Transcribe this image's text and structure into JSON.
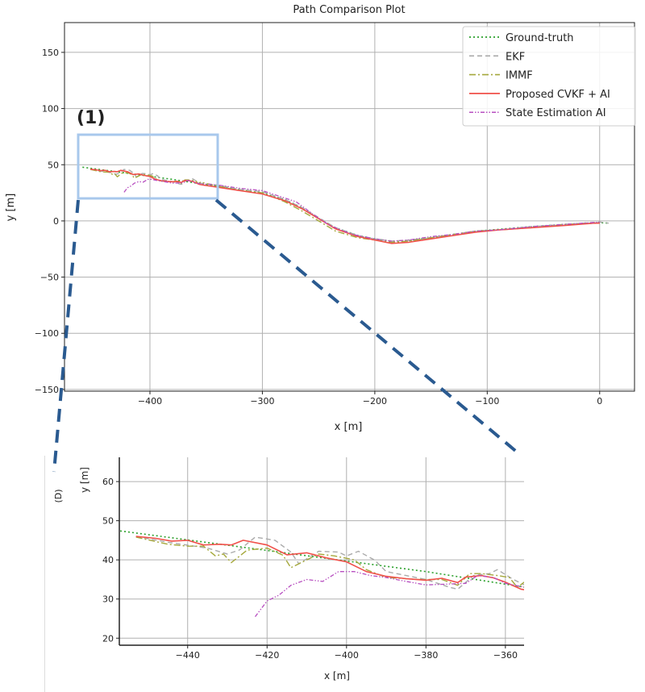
{
  "colors": {
    "ground_truth": "#2ca02c",
    "ekf": "#aaaaaa",
    "immf": "#a5a83c",
    "proposed": "#f0504a",
    "state_estimation_ai": "#b74fc0",
    "highlight_box": "#a8c8ec",
    "connector": "#2a5a90"
  },
  "annotations": {
    "region_label": "(1)",
    "inset_label": "(D)"
  },
  "chart_data": [
    {
      "type": "line",
      "title": "Path Comparison Plot",
      "xlabel": "x [m]",
      "ylabel": "y [m]",
      "xlim": [
        -476,
        31
      ],
      "ylim": [
        -151.5,
        176.5
      ],
      "xticks": [
        -400,
        -300,
        -200,
        -100,
        0
      ],
      "xtick_labels": [
        "−400",
        "−300",
        "−200",
        "−100",
        "0"
      ],
      "yticks": [
        -150,
        -100,
        -50,
        0,
        50,
        100,
        150
      ],
      "ytick_labels": [
        "−150",
        "−100",
        "−50",
        "0",
        "50",
        "100",
        "150"
      ],
      "grid": true,
      "legend_placement": "top-right",
      "highlight_region": {
        "xlim": [
          -465,
          -342
        ],
        "ylim": [
          19,
          76
        ]
      },
      "series": [
        {
          "name": "Ground-truth",
          "style": "dotted",
          "points": [
            [
              -460,
              47.8
            ],
            [
              -420,
              42.4
            ],
            [
              -380,
              37
            ],
            [
              -355,
              33
            ],
            [
              -340,
              31
            ],
            [
              -320,
              28
            ],
            [
              -300,
              25
            ],
            [
              -280,
              19
            ],
            [
              -265,
              12
            ],
            [
              -250,
              2
            ],
            [
              -235,
              -6
            ],
            [
              -215,
              -13
            ],
            [
              -200,
              -16
            ],
            [
              -185,
              -18
            ],
            [
              -170,
              -17.5
            ],
            [
              -150,
              -15
            ],
            [
              -130,
              -12
            ],
            [
              -110,
              -9
            ],
            [
              -90,
              -7.5
            ],
            [
              -60,
              -5
            ],
            [
              -30,
              -3
            ],
            [
              0,
              -1.5
            ],
            [
              8,
              -2
            ]
          ]
        },
        {
          "name": "EKF",
          "style": "dashed",
          "points": [
            [
              -453,
              46
            ],
            [
              -445,
              44.5
            ],
            [
              -435,
              43
            ],
            [
              -430,
              41.5
            ],
            [
              -427,
              42.5
            ],
            [
              -423,
              45.8
            ],
            [
              -418,
              45
            ],
            [
              -414,
              42
            ],
            [
              -412,
              39
            ],
            [
              -407,
              42.2
            ],
            [
              -402,
              42
            ],
            [
              -400,
              41
            ],
            [
              -397,
              42.2
            ],
            [
              -393,
              40
            ],
            [
              -390,
              37
            ],
            [
              -385,
              36
            ],
            [
              -380,
              35
            ],
            [
              -374,
              33
            ],
            [
              -372,
              32.5
            ],
            [
              -368,
              36
            ],
            [
              -364,
              36.5
            ],
            [
              -362,
              37.5
            ],
            [
              -358,
              35
            ],
            [
              -355,
              33.5
            ],
            [
              -340,
              32
            ],
            [
              -320,
              28
            ],
            [
              -300,
              26
            ],
            [
              -280,
              19
            ],
            [
              -265,
              12
            ],
            [
              -250,
              3
            ],
            [
              -235,
              -6
            ],
            [
              -215,
              -13
            ],
            [
              -200,
              -16
            ],
            [
              -185,
              -18
            ],
            [
              -170,
              -17
            ],
            [
              -150,
              -15
            ],
            [
              -130,
              -12
            ],
            [
              -110,
              -9
            ],
            [
              -90,
              -8
            ],
            [
              -60,
              -5
            ],
            [
              -30,
              -3
            ],
            [
              0,
              -1
            ],
            [
              8,
              -2
            ]
          ]
        },
        {
          "name": "IMMF",
          "style": "dashdot",
          "points": [
            [
              -453,
              45.8
            ],
            [
              -445,
              44
            ],
            [
              -440,
              43.5
            ],
            [
              -436,
              43.5
            ],
            [
              -433,
              41
            ],
            [
              -431,
              41.5
            ],
            [
              -429,
              39.3
            ],
            [
              -425,
              42.5
            ],
            [
              -420,
              43
            ],
            [
              -416,
              41.2
            ],
            [
              -414,
              38
            ],
            [
              -410,
              40
            ],
            [
              -407,
              41.5
            ],
            [
              -403,
              41
            ],
            [
              -398,
              40
            ],
            [
              -395,
              37.5
            ],
            [
              -390,
              35.5
            ],
            [
              -382,
              35
            ],
            [
              -376,
              35
            ],
            [
              -372,
              33.5
            ],
            [
              -369,
              36.5
            ],
            [
              -366,
              36.5
            ],
            [
              -362,
              36
            ],
            [
              -359,
              35.5
            ],
            [
              -357,
              33
            ],
            [
              -355,
              34.5
            ],
            [
              -340,
              31
            ],
            [
              -320,
              27
            ],
            [
              -300,
              25
            ],
            [
              -280,
              17
            ],
            [
              -265,
              9
            ],
            [
              -250,
              0
            ],
            [
              -235,
              -9
            ],
            [
              -215,
              -15
            ],
            [
              -200,
              -17
            ],
            [
              -185,
              -19
            ],
            [
              -170,
              -18
            ],
            [
              -150,
              -15
            ],
            [
              -130,
              -12
            ],
            [
              -110,
              -9
            ],
            [
              -90,
              -8
            ],
            [
              -60,
              -6
            ],
            [
              -30,
              -3
            ],
            [
              0,
              -2
            ]
          ]
        },
        {
          "name": "Proposed CVKF + AI",
          "style": "solid",
          "points": [
            [
              -453,
              46
            ],
            [
              -448,
              45.5
            ],
            [
              -444,
              44.8
            ],
            [
              -440,
              45
            ],
            [
              -436,
              43.8
            ],
            [
              -432,
              44
            ],
            [
              -429,
              43.8
            ],
            [
              -426,
              45
            ],
            [
              -420,
              43.8
            ],
            [
              -415,
              41.3
            ],
            [
              -410,
              41.8
            ],
            [
              -405,
              40.5
            ],
            [
              -400,
              39.5
            ],
            [
              -395,
              37
            ],
            [
              -390,
              35.8
            ],
            [
              -385,
              35.2
            ],
            [
              -380,
              34.8
            ],
            [
              -376,
              35.3
            ],
            [
              -372,
              34.2
            ],
            [
              -370,
              35.6
            ],
            [
              -366,
              36
            ],
            [
              -363,
              35.4
            ],
            [
              -360,
              34.3
            ],
            [
              -356,
              32.5
            ],
            [
              -350,
              31.5
            ],
            [
              -340,
              30
            ],
            [
              -320,
              27
            ],
            [
              -300,
              24
            ],
            [
              -280,
              18
            ],
            [
              -265,
              11
            ],
            [
              -250,
              2
            ],
            [
              -235,
              -7
            ],
            [
              -215,
              -14
            ],
            [
              -200,
              -17
            ],
            [
              -185,
              -20
            ],
            [
              -170,
              -19
            ],
            [
              -150,
              -16
            ],
            [
              -130,
              -13
            ],
            [
              -110,
              -10
            ],
            [
              -90,
              -8
            ],
            [
              -60,
              -6
            ],
            [
              -30,
              -4
            ],
            [
              -5,
              -2
            ],
            [
              0,
              -2
            ]
          ]
        },
        {
          "name": "State Estimation AI",
          "style": "dashdotdot",
          "points": [
            [
              -423,
              25.5
            ],
            [
              -420,
              29.5
            ],
            [
              -417,
              31
            ],
            [
              -414,
              33.5
            ],
            [
              -410,
              35
            ],
            [
              -406,
              34.5
            ],
            [
              -402,
              37
            ],
            [
              -398,
              37
            ],
            [
              -394,
              36
            ],
            [
              -390,
              35.5
            ],
            [
              -385,
              34.5
            ],
            [
              -380,
              33.6
            ],
            [
              -375,
              33.8
            ],
            [
              -370,
              34
            ],
            [
              -367,
              36
            ],
            [
              -363,
              35.5
            ],
            [
              -360,
              34
            ],
            [
              -355,
              33
            ],
            [
              -340,
              32
            ],
            [
              -320,
              29
            ],
            [
              -300,
              27
            ],
            [
              -285,
              22
            ],
            [
              -270,
              17
            ],
            [
              -255,
              6
            ],
            [
              -240,
              -4
            ],
            [
              -220,
              -12
            ],
            [
              -200,
              -16
            ],
            [
              -185,
              -18
            ],
            [
              -170,
              -17
            ],
            [
              -150,
              -14
            ],
            [
              -130,
              -12
            ],
            [
              -110,
              -9
            ],
            [
              -90,
              -8
            ],
            [
              -60,
              -5
            ],
            [
              -30,
              -3
            ],
            [
              0,
              -1
            ]
          ]
        }
      ]
    },
    {
      "type": "line",
      "xlabel": "x [m]",
      "ylabel": "y [m]",
      "xlim": [
        -457.2,
        -355.3
      ],
      "ylim": [
        18.2,
        66.2
      ],
      "xticks": [
        -440,
        -420,
        -400,
        -380,
        -360
      ],
      "xtick_labels": [
        "−440",
        "−420",
        "−400",
        "−380",
        "−360"
      ],
      "yticks": [
        20,
        30,
        40,
        50,
        60
      ],
      "ytick_labels": [
        "20",
        "30",
        "40",
        "50",
        "60"
      ],
      "grid": true
    }
  ]
}
